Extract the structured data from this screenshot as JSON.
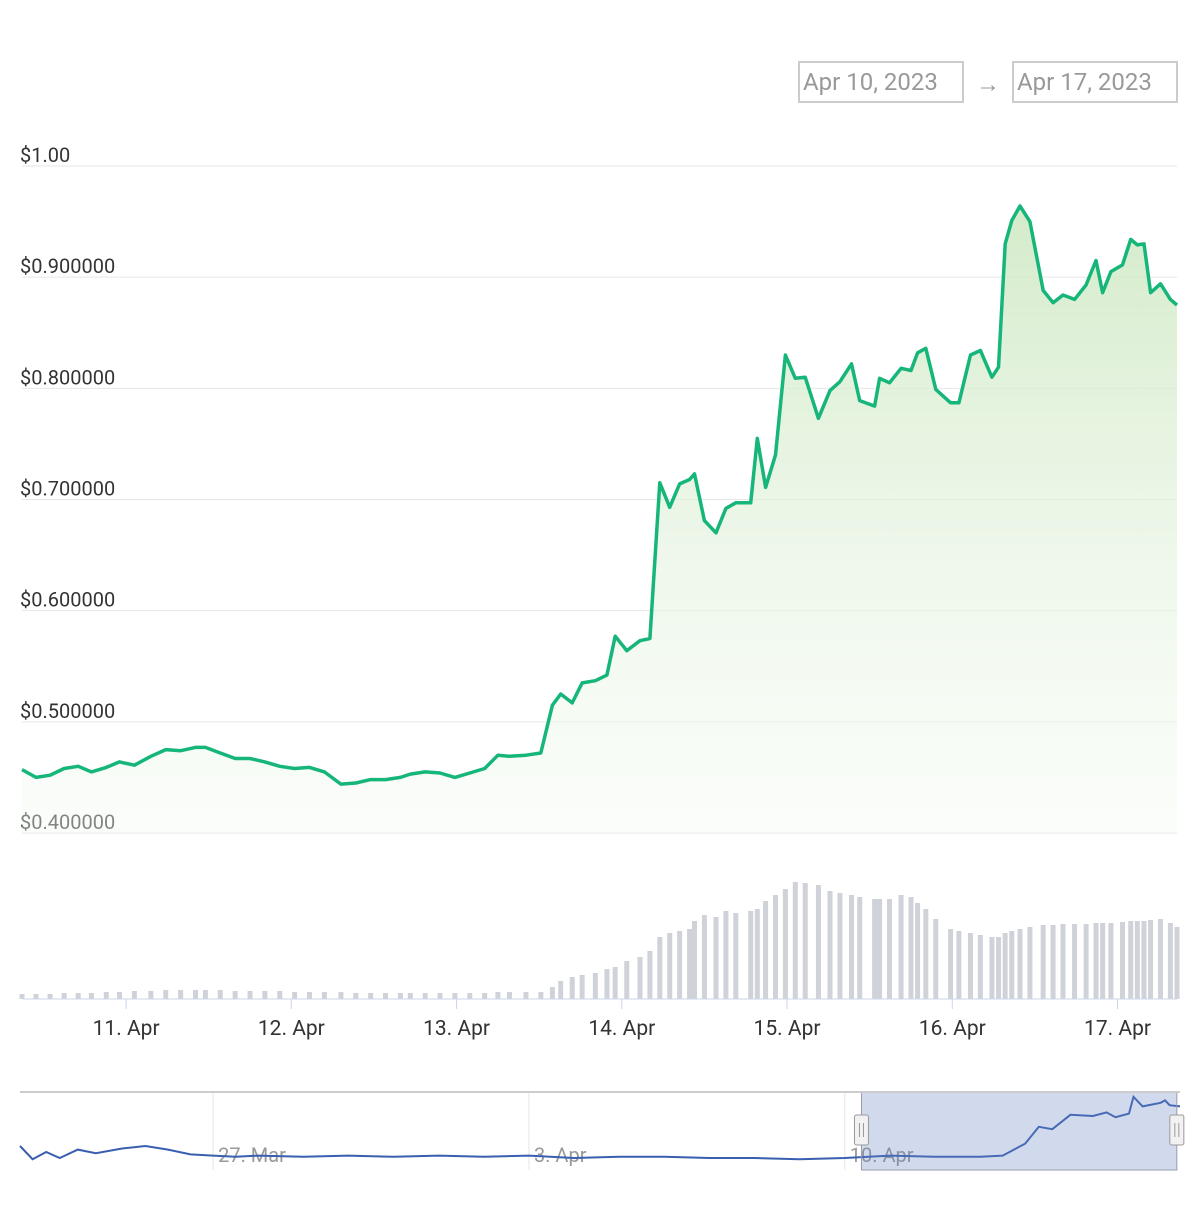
{
  "range_selector": {
    "from": "Apr 10, 2023",
    "separator": "→",
    "to": "Apr 17, 2023"
  },
  "chart_data": {
    "type": "area",
    "color": "#16b67a",
    "grid": true,
    "xlim": [
      100.37,
      107.36
    ],
    "xticks": [
      {
        "value": 101,
        "label": "11. Apr"
      },
      {
        "value": 102,
        "label": "12. Apr"
      },
      {
        "value": 103,
        "label": "13. Apr"
      },
      {
        "value": 104,
        "label": "14. Apr"
      },
      {
        "value": 105,
        "label": "15. Apr"
      },
      {
        "value": 106,
        "label": "16. Apr"
      },
      {
        "value": 107,
        "label": "17. Apr"
      }
    ],
    "ylim": [
      0.4,
      1.0
    ],
    "yticks": [
      {
        "value": 0.4,
        "label": "$0.400000"
      },
      {
        "value": 0.5,
        "label": "$0.500000"
      },
      {
        "value": 0.6,
        "label": "$0.600000"
      },
      {
        "value": 0.7,
        "label": "$0.700000"
      },
      {
        "value": 0.8,
        "label": "$0.800000"
      },
      {
        "value": 0.9,
        "label": "$0.900000"
      },
      {
        "value": 1.0,
        "label": "$1.00"
      }
    ],
    "x": [
      100.37,
      100.455,
      100.54,
      100.625,
      100.71,
      100.79,
      100.88,
      100.96,
      101.05,
      101.15,
      101.24,
      101.33,
      101.42,
      101.48,
      101.57,
      101.66,
      101.75,
      101.84,
      101.93,
      102.02,
      102.11,
      102.2,
      102.3,
      102.39,
      102.48,
      102.57,
      102.66,
      102.72,
      102.81,
      102.9,
      102.99,
      103.08,
      103.17,
      103.25,
      103.32,
      103.42,
      103.51,
      103.58,
      103.63,
      103.7,
      103.76,
      103.84,
      103.91,
      103.96,
      104.03,
      104.11,
      104.17,
      104.23,
      104.29,
      104.35,
      104.41,
      104.44,
      104.5,
      104.57,
      104.63,
      104.69,
      104.78,
      104.82,
      104.87,
      104.93,
      104.99,
      105.05,
      105.11,
      105.19,
      105.26,
      105.32,
      105.39,
      105.44,
      105.53,
      105.56,
      105.62,
      105.69,
      105.75,
      105.79,
      105.84,
      105.9,
      105.99,
      106.04,
      106.11,
      106.17,
      106.24,
      106.28,
      106.32,
      106.36,
      106.41,
      106.47,
      106.55,
      106.61,
      106.67,
      106.74,
      106.81,
      106.87,
      106.91,
      106.96,
      107.03,
      107.08,
      107.12,
      107.16,
      107.2,
      107.26,
      107.32,
      107.36
    ],
    "values": [
      0.457,
      0.45,
      0.452,
      0.458,
      0.46,
      0.455,
      0.459,
      0.464,
      0.461,
      0.469,
      0.475,
      0.474,
      0.477,
      0.477,
      0.472,
      0.467,
      0.467,
      0.464,
      0.46,
      0.458,
      0.459,
      0.455,
      0.444,
      0.445,
      0.448,
      0.448,
      0.45,
      0.453,
      0.455,
      0.454,
      0.45,
      0.454,
      0.458,
      0.47,
      0.469,
      0.47,
      0.472,
      0.515,
      0.525,
      0.517,
      0.535,
      0.537,
      0.542,
      0.577,
      0.564,
      0.573,
      0.575,
      0.715,
      0.693,
      0.714,
      0.718,
      0.723,
      0.681,
      0.67,
      0.692,
      0.697,
      0.697,
      0.755,
      0.711,
      0.74,
      0.83,
      0.809,
      0.81,
      0.773,
      0.798,
      0.806,
      0.822,
      0.789,
      0.784,
      0.809,
      0.805,
      0.818,
      0.816,
      0.832,
      0.836,
      0.799,
      0.787,
      0.787,
      0.83,
      0.834,
      0.81,
      0.819,
      0.93,
      0.951,
      0.964,
      0.95,
      0.888,
      0.877,
      0.884,
      0.88,
      0.893,
      0.915,
      0.886,
      0.905,
      0.911,
      0.934,
      0.929,
      0.93,
      0.886,
      0.894,
      0.88,
      0.875
    ],
    "volume": {
      "type": "bar",
      "color": "#cfd2d9",
      "ylim": [
        0,
        125
      ],
      "values": [
        5,
        5,
        5,
        6,
        6,
        6,
        7,
        7,
        8,
        8,
        9,
        9,
        9,
        9,
        9,
        8,
        8,
        8,
        8,
        7,
        7,
        7,
        7,
        6,
        6,
        6,
        6,
        6,
        6,
        6,
        6,
        6,
        6,
        7,
        7,
        7,
        7,
        12,
        18,
        22,
        24,
        26,
        30,
        32,
        38,
        42,
        48,
        62,
        66,
        68,
        70,
        78,
        84,
        82,
        88,
        86,
        88,
        90,
        98,
        104,
        110,
        117,
        116,
        114,
        108,
        106,
        104,
        102,
        100,
        100,
        100,
        104,
        102,
        96,
        90,
        80,
        70,
        68,
        66,
        64,
        62,
        62,
        66,
        68,
        70,
        72,
        74,
        74,
        75,
        75,
        75,
        76,
        76,
        76,
        77,
        78,
        78,
        78,
        79,
        80,
        76,
        72
      ]
    },
    "navigator": {
      "type": "line",
      "color": "#3a5fb0",
      "xlim": [
        81.72,
        107.43
      ],
      "xticks": [
        {
          "value": 86,
          "label": "27. Mar"
        },
        {
          "value": 93,
          "label": "3. Apr"
        },
        {
          "value": 100,
          "label": "10. Apr"
        }
      ],
      "ylim": [
        0.35,
        1.0
      ],
      "x": [
        81.72,
        82.0,
        82.3,
        82.6,
        83.0,
        83.4,
        84.0,
        84.5,
        85,
        85.5,
        86,
        86.5,
        87,
        88,
        89,
        90,
        91,
        92,
        93,
        94,
        95,
        96,
        97,
        98,
        99,
        100,
        101,
        102,
        103,
        103.5,
        104,
        104.3,
        104.6,
        105,
        105.5,
        105.8,
        106,
        106.3,
        106.4,
        106.6,
        107,
        107.1,
        107.2,
        107.43
      ],
      "values": [
        0.55,
        0.44,
        0.5,
        0.45,
        0.52,
        0.49,
        0.53,
        0.55,
        0.52,
        0.48,
        0.47,
        0.46,
        0.47,
        0.46,
        0.47,
        0.46,
        0.47,
        0.46,
        0.47,
        0.45,
        0.46,
        0.46,
        0.45,
        0.45,
        0.44,
        0.45,
        0.47,
        0.46,
        0.46,
        0.47,
        0.57,
        0.71,
        0.69,
        0.81,
        0.8,
        0.83,
        0.79,
        0.82,
        0.96,
        0.88,
        0.91,
        0.93,
        0.89,
        0.88
      ]
    }
  }
}
